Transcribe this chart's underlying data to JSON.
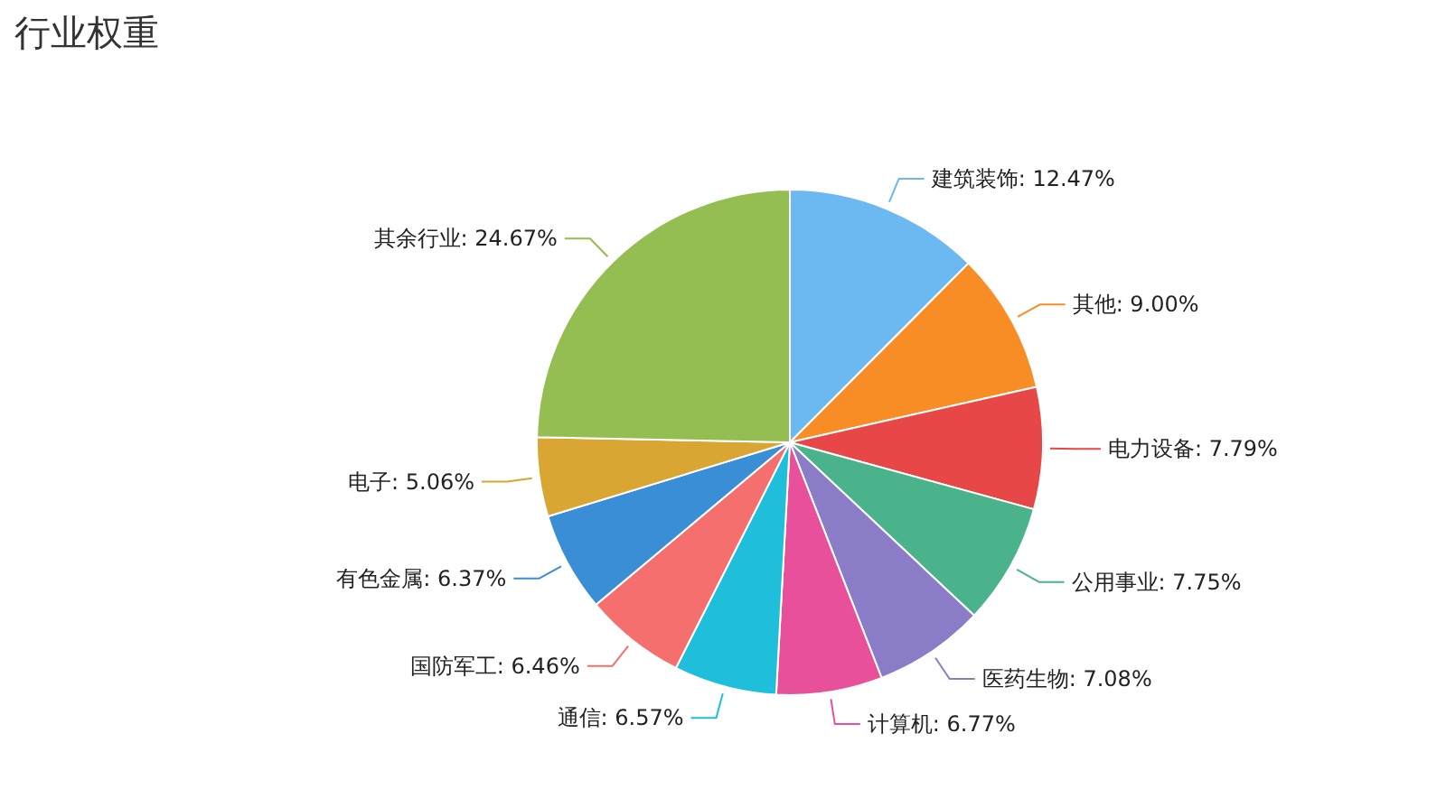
{
  "chart_data": {
    "type": "pie",
    "title": "行业权重",
    "categories": [
      "建筑装饰",
      "其他",
      "电力设备",
      "公用事业",
      "医药生物",
      "计算机",
      "通信",
      "国防军工",
      "有色金属",
      "电子",
      "其余行业"
    ],
    "values": [
      12.47,
      9.0,
      7.79,
      7.75,
      7.08,
      6.77,
      6.57,
      6.46,
      6.37,
      5.06,
      24.67
    ],
    "value_labels": [
      "12.47%",
      "9.00%",
      "7.79%",
      "7.75%",
      "7.08%",
      "6.77%",
      "6.57%",
      "6.46%",
      "6.37%",
      "5.06%",
      "24.67%"
    ],
    "colors": [
      "#6cb8f0",
      "#f98d25",
      "#e84747",
      "#4ab38b",
      "#8a7cc7",
      "#e8509b",
      "#1fbfdb",
      "#f56f6f",
      "#3a8ed6",
      "#d9a633",
      "#94bd52"
    ],
    "legend": false
  }
}
